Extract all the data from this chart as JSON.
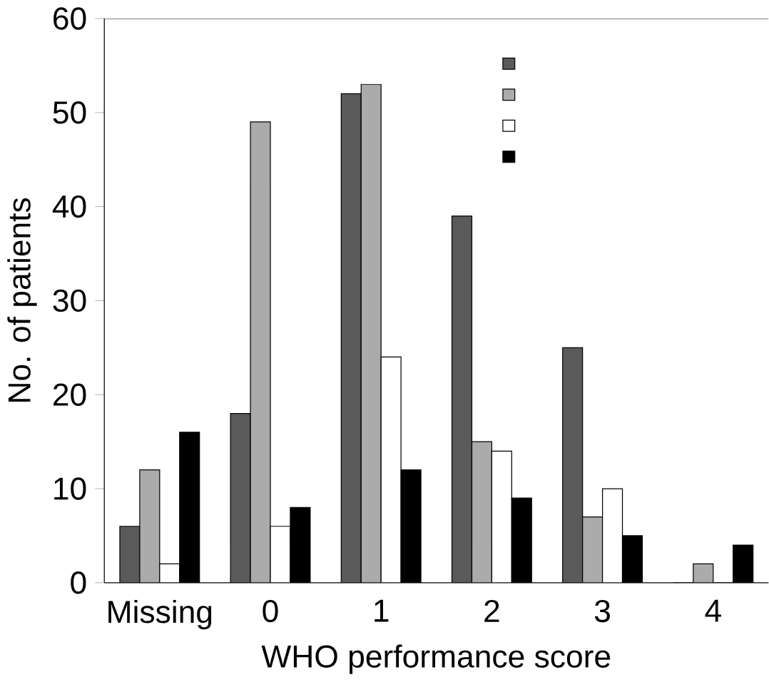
{
  "chart_data": {
    "type": "bar",
    "xlabel": "WHO performance score",
    "ylabel": "No. of patients",
    "categories": [
      "Missing",
      "0",
      "1",
      "2",
      "3",
      "4"
    ],
    "series": [
      {
        "color": "#5a5a5a",
        "values": [
          6,
          18,
          52,
          39,
          25,
          0
        ]
      },
      {
        "color": "#ababab",
        "values": [
          12,
          49,
          53,
          15,
          7,
          2
        ]
      },
      {
        "color": "#ffffff",
        "values": [
          2,
          6,
          24,
          14,
          10,
          0
        ]
      },
      {
        "color": "#000000",
        "values": [
          16,
          8,
          12,
          9,
          5,
          4
        ]
      }
    ],
    "ylim": [
      0,
      60
    ],
    "yticks": [
      0,
      10,
      20,
      30,
      40,
      50,
      60
    ],
    "grid": false
  }
}
